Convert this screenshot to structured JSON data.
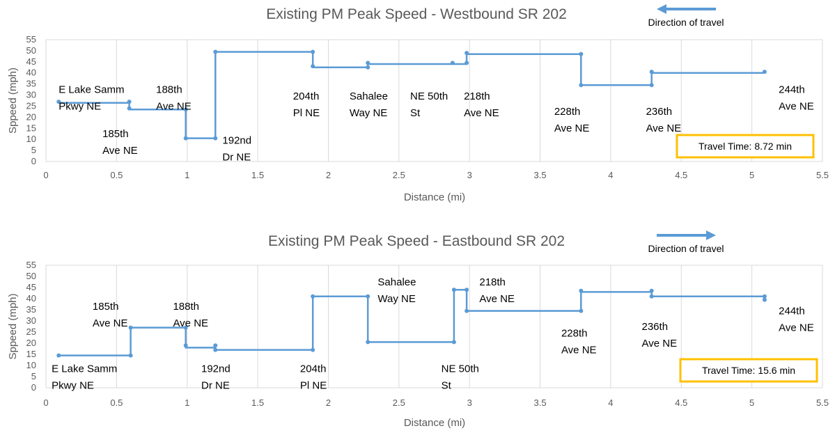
{
  "colors": {
    "series": "#5b9bd5",
    "arrow": "#5b9bd5",
    "travel_time_border": "#ffc000",
    "gridline": "#d9d9d9",
    "text": "#595959"
  },
  "chart_data": [
    {
      "type": "line",
      "step": true,
      "title": "Existing PM Peak Speed - Westbound SR 202",
      "xlabel": "Distance (mi)",
      "ylabel": "Speed (mph)",
      "ylabel_printed": "Sppeed (mph)",
      "xlim": [
        0,
        5.5
      ],
      "ylim": [
        0,
        55
      ],
      "x_ticks": [
        "0",
        "0.5",
        "1",
        "1.5",
        "2",
        "2.5",
        "3",
        "3.5",
        "4",
        "4.5",
        "5",
        "5.5"
      ],
      "y_ticks": [
        "0",
        "5",
        "10",
        "15",
        "20",
        "25",
        "30",
        "35",
        "40",
        "45",
        "50",
        "55"
      ],
      "grid": "vertical",
      "direction_label": "Direction of travel",
      "direction": "west",
      "travel_time": "Travel Time: 8.72 min",
      "series": [
        {
          "x": [
            0.09,
            0.59,
            0.59,
            0.99,
            0.99,
            1.2,
            1.2,
            1.89,
            1.89,
            2.28,
            2.28,
            2.88,
            2.98,
            2.98,
            3.79,
            3.79,
            4.29,
            4.29,
            5.09
          ],
          "y": [
            26.5,
            26.5,
            23.5,
            23.5,
            10.5,
            10.5,
            49.5,
            49.5,
            42.5,
            42.5,
            44.0,
            44.0,
            44.0,
            48.5,
            48.5,
            34.5,
            34.5,
            40.0,
            40.0
          ],
          "markers": [
            [
              0.09,
              27
            ],
            [
              0.59,
              27
            ],
            [
              0.59,
              24
            ],
            [
              0.99,
              23.5
            ],
            [
              0.99,
              10.5
            ],
            [
              1.2,
              10.5
            ],
            [
              1.2,
              49.5
            ],
            [
              1.89,
              49.5
            ],
            [
              1.89,
              43
            ],
            [
              2.28,
              44.5
            ],
            [
              2.28,
              42.5
            ],
            [
              2.88,
              44.5
            ],
            [
              2.98,
              44.5
            ],
            [
              2.98,
              49
            ],
            [
              3.79,
              48.5
            ],
            [
              3.79,
              34.5
            ],
            [
              4.29,
              34.5
            ],
            [
              4.29,
              40.5
            ],
            [
              5.09,
              40.5
            ]
          ]
        }
      ],
      "annotations": [
        {
          "text": [
            "E Lake Samm",
            "Pkwy NE"
          ],
          "x": 0.09,
          "y": 31
        },
        {
          "text": [
            "185th",
            "Ave NE"
          ],
          "x": 0.4,
          "y": 11
        },
        {
          "text": [
            "188th",
            "Ave NE"
          ],
          "x": 0.78,
          "y": 31
        },
        {
          "text": [
            "192nd",
            "Dr NE"
          ],
          "x": 1.25,
          "y": 8
        },
        {
          "text": [
            "204th",
            "Pl NE"
          ],
          "x": 1.75,
          "y": 28
        },
        {
          "text": [
            "Sahalee",
            "Way NE"
          ],
          "x": 2.15,
          "y": 28
        },
        {
          "text": [
            "NE 50th",
            "St"
          ],
          "x": 2.58,
          "y": 28
        },
        {
          "text": [
            "218th",
            "Ave NE"
          ],
          "x": 2.96,
          "y": 28
        },
        {
          "text": [
            "228th",
            "Ave NE"
          ],
          "x": 3.6,
          "y": 21
        },
        {
          "text": [
            "236th",
            "Ave NE"
          ],
          "x": 4.25,
          "y": 21
        },
        {
          "text": [
            "244th",
            "Ave NE"
          ],
          "x": 5.19,
          "y": 31
        }
      ]
    },
    {
      "type": "line",
      "step": true,
      "title": "Existing PM Peak Speed - Eastbound SR 202",
      "xlabel": "Distance (mi)",
      "ylabel": "Speed (mph)",
      "ylabel_printed": "Sppeed (mph)",
      "xlim": [
        0,
        5.5
      ],
      "ylim": [
        0,
        55
      ],
      "x_ticks": [
        "0",
        "0.5",
        "1",
        "1.5",
        "2",
        "2.5",
        "3",
        "3.5",
        "4",
        "4.5",
        "5",
        "5.5"
      ],
      "y_ticks": [
        "0",
        "5",
        "10",
        "15",
        "20",
        "25",
        "30",
        "35",
        "40",
        "45",
        "50",
        "55"
      ],
      "grid": "vertical",
      "direction_label": "Direction of travel",
      "direction": "east",
      "travel_time": "Travel Time: 15.6 min",
      "series": [
        {
          "x": [
            0.09,
            0.6,
            0.6,
            0.99,
            0.99,
            1.2,
            1.2,
            1.89,
            1.89,
            2.28,
            2.28,
            2.89,
            2.89,
            2.98,
            2.98,
            3.79,
            3.79,
            4.29,
            4.29,
            5.09
          ],
          "y": [
            14.5,
            14.5,
            27.0,
            27.0,
            18.0,
            18.0,
            17.0,
            17.0,
            41.0,
            41.0,
            20.5,
            20.5,
            44.0,
            44.0,
            34.5,
            34.5,
            43.0,
            43.0,
            41.0,
            41.0
          ],
          "markers": [
            [
              0.09,
              14.5
            ],
            [
              0.6,
              14.5
            ],
            [
              0.6,
              27
            ],
            [
              0.99,
              27
            ],
            [
              0.99,
              19
            ],
            [
              1.2,
              19
            ],
            [
              1.2,
              17
            ],
            [
              1.89,
              17
            ],
            [
              1.89,
              41
            ],
            [
              2.28,
              41
            ],
            [
              2.28,
              20.5
            ],
            [
              2.89,
              20.5
            ],
            [
              2.89,
              44
            ],
            [
              2.98,
              44
            ],
            [
              2.98,
              34.5
            ],
            [
              3.79,
              34.5
            ],
            [
              3.79,
              43.5
            ],
            [
              4.29,
              43.5
            ],
            [
              4.29,
              41
            ],
            [
              5.09,
              41
            ],
            [
              5.09,
              39.5
            ]
          ]
        }
      ],
      "annotations": [
        {
          "text": [
            "E Lake Samm",
            "Pkwy NE"
          ],
          "x": 0.04,
          "y": 7
        },
        {
          "text": [
            "185th",
            "Ave NE"
          ],
          "x": 0.33,
          "y": 35
        },
        {
          "text": [
            "188th",
            "Ave NE"
          ],
          "x": 0.9,
          "y": 35
        },
        {
          "text": [
            "192nd",
            "Dr NE"
          ],
          "x": 1.1,
          "y": 7
        },
        {
          "text": [
            "204th",
            "Pl NE"
          ],
          "x": 1.8,
          "y": 7
        },
        {
          "text": [
            "Sahalee",
            "Way NE"
          ],
          "x": 2.35,
          "y": 46
        },
        {
          "text": [
            "NE 50th",
            "St"
          ],
          "x": 2.8,
          "y": 7
        },
        {
          "text": [
            "218th",
            "Ave NE"
          ],
          "x": 3.07,
          "y": 46
        },
        {
          "text": [
            "228th",
            "Ave NE"
          ],
          "x": 3.65,
          "y": 23
        },
        {
          "text": [
            "236th",
            "Ave NE"
          ],
          "x": 4.22,
          "y": 26
        },
        {
          "text": [
            "244th",
            "Ave NE"
          ],
          "x": 5.19,
          "y": 33
        }
      ]
    }
  ]
}
